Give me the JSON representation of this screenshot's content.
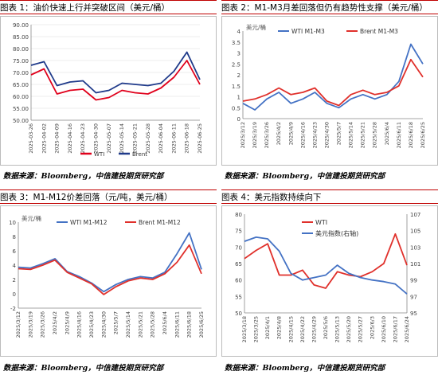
{
  "panels": [
    {
      "title": "图表 1：油价快速上行并突破区间（美元/桶）",
      "source": "数据来源：Bloomberg，中信建投期货研究部",
      "chart_data": {
        "type": "line",
        "x": [
          "2025-03-26",
          "2025-04-02",
          "2025-04-09",
          "2025-04-16",
          "2025-04-23",
          "2025-04-30",
          "2025-05-07",
          "2025-05-14",
          "2025-05-21",
          "2025-05-28",
          "2025-06-04",
          "2025-06-11",
          "2025-06-18",
          "2025-06-25"
        ],
        "series": [
          {
            "name": "WTI",
            "color": "#e0001b",
            "values": [
              69.0,
              71.5,
              61.0,
              62.5,
              63.0,
              58.5,
              59.5,
              62.5,
              61.5,
              61.0,
              63.5,
              68.0,
              75.0,
              65.0
            ]
          },
          {
            "name": "Brent",
            "color": "#1f3a8a",
            "values": [
              73.0,
              74.5,
              64.5,
              66.0,
              66.5,
              61.5,
              62.5,
              65.5,
              65.0,
              64.5,
              65.5,
              70.5,
              78.5,
              67.0
            ]
          }
        ],
        "yticks": [
          "50.00",
          "55.00",
          "60.00",
          "65.00",
          "70.00",
          "75.00",
          "80.00",
          "85.00",
          "90.00"
        ],
        "ylim": [
          50,
          90
        ],
        "ylabel": "",
        "legend_placement": "bottom"
      }
    },
    {
      "title": "图表 2：M1-M3月差回落但仍有趋势性支撑（美元/桶）",
      "source": "数据来源：Bloomberg，中信建投期货研究部",
      "chart_data": {
        "type": "line",
        "x": [
          "2025/3/12",
          "2025/3/19",
          "2025/3/26",
          "2025/4/2",
          "2025/4/9",
          "2025/4/16",
          "2025/4/23",
          "2025/4/30",
          "2025/5/7",
          "2025/5/14",
          "2025/5/21",
          "2025/5/28",
          "2025/6/4",
          "2025/6/11",
          "2025/6/18",
          "2025/6/25"
        ],
        "series": [
          {
            "name": "WTI M1-M3",
            "color": "#4472c4",
            "values": [
              0.7,
              0.4,
              0.9,
              1.2,
              0.7,
              0.9,
              1.2,
              0.7,
              0.5,
              0.9,
              1.1,
              0.9,
              1.1,
              1.7,
              3.4,
              2.5
            ]
          },
          {
            "name": "Brent M1-M3",
            "color": "#e0302b",
            "values": [
              0.8,
              0.9,
              1.1,
              1.4,
              1.1,
              1.2,
              1.4,
              0.8,
              0.6,
              1.1,
              1.3,
              1.1,
              1.2,
              1.5,
              2.7,
              1.9
            ]
          }
        ],
        "yticks": [
          "0",
          "0.5",
          "1",
          "1.5",
          "2",
          "2.5",
          "3",
          "3.5",
          "4"
        ],
        "ylim": [
          0,
          4
        ],
        "ylabel": "美元/桶",
        "legend_placement": "top"
      }
    },
    {
      "title": "图表 3：M1-M12价差回落（元/吨，美元/桶）",
      "source": "数据来源：Bloomberg，中信建投期货研究部",
      "chart_data": {
        "type": "line",
        "x": [
          "2025/3/12",
          "2025/3/19",
          "2025/3/26",
          "2025/4/2",
          "2025/4/9",
          "2025/4/16",
          "2025/4/23",
          "2025/4/30",
          "2025/5/7",
          "2025/5/14",
          "2025/5/21",
          "2025/5/28",
          "2025/6/4",
          "2025/6/11",
          "2025/6/18",
          "2025/6/25"
        ],
        "series": [
          {
            "name": "WTI M1-M12",
            "color": "#4472c4",
            "values": [
              3.7,
              3.6,
              4.2,
              4.9,
              3.1,
              2.4,
              1.5,
              0.3,
              1.3,
              2.0,
              2.4,
              2.2,
              3.0,
              5.6,
              8.5,
              3.4
            ]
          },
          {
            "name": "Brent M1-M12",
            "color": "#e0302b",
            "values": [
              3.5,
              3.4,
              4.0,
              4.7,
              3.0,
              2.2,
              1.4,
              -0.1,
              1.0,
              1.8,
              2.2,
              2.0,
              2.8,
              4.4,
              6.8,
              2.8
            ]
          }
        ],
        "yticks": [
          "-2",
          "0",
          "2",
          "4",
          "6",
          "8",
          "10"
        ],
        "ylim": [
          -2,
          10
        ],
        "ylabel": "美元/桶",
        "legend_placement": "top"
      }
    },
    {
      "title": "图表 4：美元指数持续向下",
      "source": "数据来源：Bloomberg，中信建投期货研究部",
      "chart_data": {
        "type": "line",
        "x": [
          "2025/3/18",
          "2025/3/25",
          "2025/4/1",
          "2025/4/8",
          "2025/4/15",
          "2025/4/22",
          "2025/4/29",
          "2025/5/6",
          "2025/5/13",
          "2025/5/20",
          "2025/5/27",
          "2025/6/3",
          "2025/6/10",
          "2025/6/17",
          "2025/6/24"
        ],
        "series": [
          {
            "name": "WTI",
            "color": "#e0302b",
            "axis": "left",
            "values": [
              66.5,
              69.0,
              71.0,
              61.5,
              61.5,
              63.0,
              58.5,
              57.5,
              62.5,
              61.5,
              61.0,
              62.5,
              65.0,
              74.0,
              64.5
            ]
          },
          {
            "name": "美元指数(右轴)",
            "color": "#4472c4",
            "axis": "right",
            "values": [
              103.7,
              104.2,
              104.0,
              102.5,
              99.8,
              99.0,
              99.3,
              99.6,
              100.8,
              99.8,
              99.3,
              99.0,
              98.8,
              98.5,
              97.3
            ]
          }
        ],
        "yticks_left": [
          "50",
          "55",
          "60",
          "65",
          "70",
          "75",
          "80"
        ],
        "ylim_left": [
          50,
          80
        ],
        "yticks_right": [
          "95",
          "97",
          "99",
          "101",
          "103",
          "105",
          "107"
        ],
        "ylim_right": [
          95,
          107
        ],
        "legend_placement": "top"
      }
    }
  ]
}
